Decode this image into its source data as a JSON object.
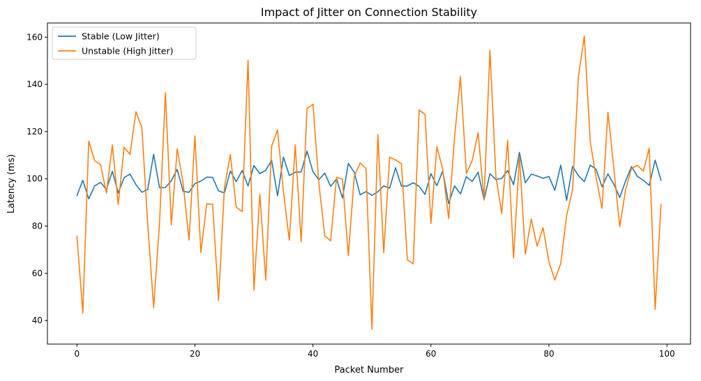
{
  "chart_data": {
    "type": "line",
    "title": "Impact of Jitter on Connection Stability",
    "xlabel": "Packet Number",
    "ylabel": "Latency (ms)",
    "xlim": [
      -5,
      104
    ],
    "ylim": [
      30,
      166
    ],
    "xticks": [
      0,
      20,
      40,
      60,
      80,
      100
    ],
    "yticks": [
      40,
      60,
      80,
      100,
      120,
      140,
      160
    ],
    "grid": false,
    "legend_position": "top-left",
    "x": [
      0,
      1,
      2,
      3,
      4,
      5,
      6,
      7,
      8,
      9,
      10,
      11,
      12,
      13,
      14,
      15,
      16,
      17,
      18,
      19,
      20,
      21,
      22,
      23,
      24,
      25,
      26,
      27,
      28,
      29,
      30,
      31,
      32,
      33,
      34,
      35,
      36,
      37,
      38,
      39,
      40,
      41,
      42,
      43,
      44,
      45,
      46,
      47,
      48,
      49,
      50,
      51,
      52,
      53,
      54,
      55,
      56,
      57,
      58,
      59,
      60,
      61,
      62,
      63,
      64,
      65,
      66,
      67,
      68,
      69,
      70,
      71,
      72,
      73,
      74,
      75,
      76,
      77,
      78,
      79,
      80,
      81,
      82,
      83,
      84,
      85,
      86,
      87,
      88,
      89,
      90,
      91,
      92,
      93,
      94,
      95,
      96,
      97,
      98,
      99
    ],
    "series": [
      {
        "name": "Stable (Low Jitter)",
        "color": "#1f77b4",
        "values": [
          92.9,
          99.4,
          91.5,
          97.0,
          98.5,
          95.5,
          103.2,
          94.0,
          100.5,
          102.0,
          97.5,
          94.3,
          95.5,
          110.4,
          96.2,
          96.3,
          99.2,
          104.0,
          94.7,
          94.3,
          98.0,
          99.0,
          100.7,
          100.6,
          94.9,
          94.0,
          103.3,
          98.8,
          103.5,
          97.0,
          105.6,
          102.2,
          103.6,
          107.9,
          92.8,
          109.2,
          101.4,
          102.8,
          102.9,
          111.7,
          103.0,
          99.6,
          102.4,
          96.8,
          100.0,
          91.9,
          106.5,
          102.8,
          93.2,
          94.6,
          93.0,
          94.5,
          97.0,
          96.0,
          104.7,
          96.9,
          97.0,
          98.3,
          96.8,
          93.4,
          102.2,
          97.1,
          103.3,
          89.5,
          97.0,
          93.6,
          100.9,
          98.9,
          102.8,
          91.1,
          102.2,
          99.7,
          100.2,
          103.5,
          97.5,
          111.2,
          98.3,
          102.0,
          101.2,
          100.2,
          101.0,
          95.1,
          105.8,
          90.9,
          105.3,
          101.3,
          98.8,
          105.8,
          104.0,
          96.6,
          102.1,
          97.7,
          92.1,
          99.1,
          105.2,
          101.0,
          99.4,
          97.2,
          107.9,
          99.3
        ]
      },
      {
        "name": "Unstable (High Jitter)",
        "color": "#ff7f0e",
        "values": [
          75.8,
          43.2,
          116.0,
          107.7,
          106.0,
          94.0,
          114.3,
          89.1,
          113.4,
          110.3,
          128.4,
          121.8,
          80.8,
          45.4,
          81.4,
          136.5,
          80.5,
          112.7,
          98.2,
          74.0,
          118.2,
          68.8,
          89.4,
          89.2,
          48.5,
          96.3,
          110.3,
          88.0,
          86.1,
          150.2,
          52.9,
          93.4,
          57.1,
          113.8,
          120.7,
          94.5,
          74.0,
          114.4,
          73.4,
          129.8,
          131.6,
          98.2,
          75.9,
          73.7,
          100.7,
          99.8,
          67.5,
          101.0,
          106.7,
          104.4,
          36.3,
          118.8,
          68.7,
          109.2,
          108.0,
          106.4,
          65.7,
          64.0,
          129.1,
          127.3,
          81.1,
          113.7,
          104.0,
          83.2,
          117.5,
          143.3,
          102.2,
          107.8,
          119.6,
          91.0,
          154.5,
          101.2,
          85.3,
          116.3,
          66.4,
          109.5,
          68.1,
          83.0,
          71.5,
          79.3,
          64.8,
          57.1,
          64.1,
          84.5,
          95.3,
          143.3,
          160.5,
          115.8,
          100.5,
          87.5,
          128.2,
          104.5,
          79.7,
          95.4,
          104.5,
          105.7,
          103.2,
          113.0,
          44.7,
          89.2
        ]
      }
    ]
  }
}
